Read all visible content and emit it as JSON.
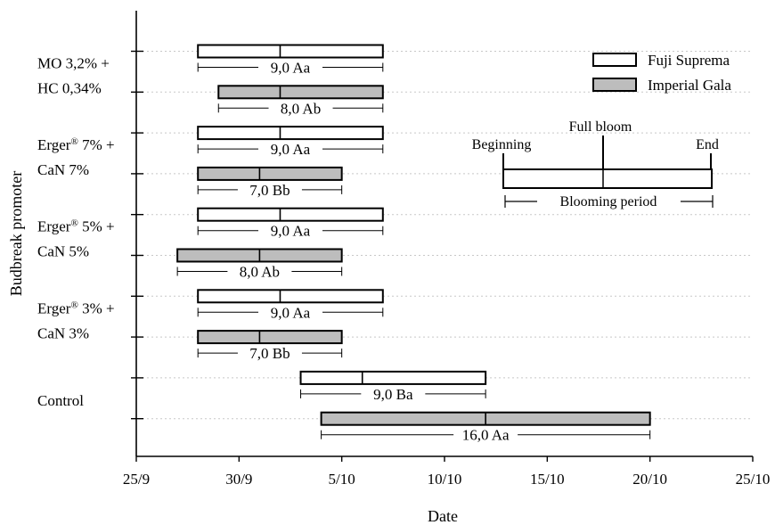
{
  "chart_data": {
    "type": "bar",
    "subtype": "floating-horizontal-bar",
    "xlabel": "Date",
    "ylabel": "Budbreak promoter",
    "x_ticks": [
      "25/9",
      "30/9",
      "5/10",
      "10/10",
      "15/10",
      "20/10",
      "25/10"
    ],
    "xlim": [
      "2014-09-25",
      "2014-10-25"
    ],
    "grid": "horizontal dotted",
    "legend_position": "top-right",
    "series": [
      {
        "name": "Fuji Suprema",
        "color": "#ffffff"
      },
      {
        "name": "Imperial Gala",
        "color": "#bdbdbd"
      }
    ],
    "groups": [
      {
        "label_lines": [
          "MO 3,2% +",
          "HC 0,34%"
        ],
        "bars": [
          {
            "series": "Fuji Suprema",
            "start": "2014-09-28",
            "full_bloom": "2014-10-02",
            "end": "2014-10-07",
            "label": "9,0 Aa"
          },
          {
            "series": "Imperial Gala",
            "start": "2014-09-29",
            "full_bloom": "2014-10-02",
            "end": "2014-10-07",
            "label": "8,0 Ab"
          }
        ]
      },
      {
        "label_lines": [
          "Erger® 7% +",
          "CaN 7%"
        ],
        "bars": [
          {
            "series": "Fuji Suprema",
            "start": "2014-09-28",
            "full_bloom": "2014-10-02",
            "end": "2014-10-07",
            "label": "9,0 Aa"
          },
          {
            "series": "Imperial Gala",
            "start": "2014-09-28",
            "full_bloom": "2014-10-01",
            "end": "2014-10-05",
            "label": "7,0 Bb"
          }
        ]
      },
      {
        "label_lines": [
          "Erger® 5% +",
          "CaN 5%"
        ],
        "bars": [
          {
            "series": "Fuji Suprema",
            "start": "2014-09-28",
            "full_bloom": "2014-10-02",
            "end": "2014-10-07",
            "label": "9,0 Aa"
          },
          {
            "series": "Imperial Gala",
            "start": "2014-09-27",
            "full_bloom": "2014-10-01",
            "end": "2014-10-05",
            "label": "8,0 Ab"
          }
        ]
      },
      {
        "label_lines": [
          "Erger® 3% +",
          "CaN 3%"
        ],
        "bars": [
          {
            "series": "Fuji Suprema",
            "start": "2014-09-28",
            "full_bloom": "2014-10-02",
            "end": "2014-10-07",
            "label": "9,0 Aa"
          },
          {
            "series": "Imperial Gala",
            "start": "2014-09-28",
            "full_bloom": "2014-10-01",
            "end": "2014-10-05",
            "label": "7,0 Bb"
          }
        ]
      },
      {
        "label_lines": [
          "Control"
        ],
        "bars": [
          {
            "series": "Fuji Suprema",
            "start": "2014-10-03",
            "full_bloom": "2014-10-06",
            "end": "2014-10-12",
            "label": "9,0 Ba"
          },
          {
            "series": "Imperial Gala",
            "start": "2014-10-04",
            "full_bloom": "2014-10-12",
            "end": "2014-10-20",
            "label": "16,0 Aa"
          }
        ]
      }
    ],
    "key_diagram": {
      "beginning": "Beginning",
      "full_bloom": "Full bloom",
      "end": "End",
      "period": "Blooming period"
    }
  }
}
